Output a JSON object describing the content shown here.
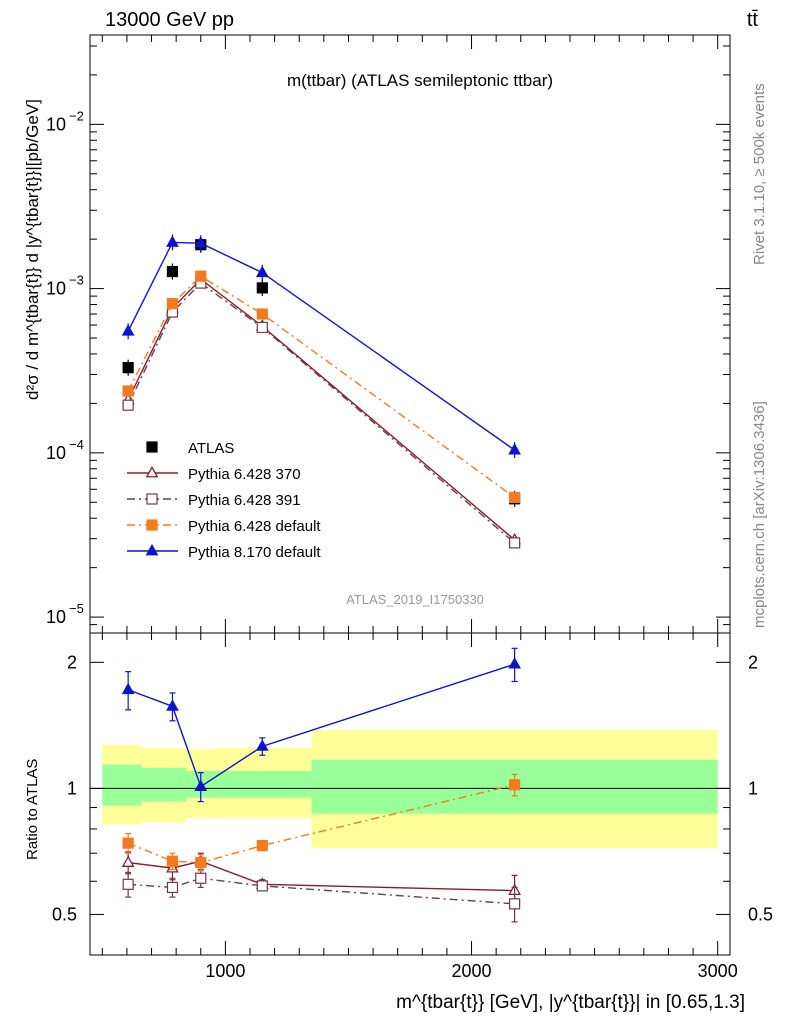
{
  "header": {
    "energy": "13000 GeV pp",
    "process": "tt̄"
  },
  "side": {
    "rivet": "Rivet 3.1.10, ≥ 500k events",
    "mcplots": "mcplots.cern.ch [arXiv:1306.3436]"
  },
  "chart_data": [
    {
      "type": "scatter",
      "title": "m(ttbar) (ATLAS semileptonic ttbar)",
      "analysis": "ATLAS_2019_I1750330",
      "ylabel": "d²σ / d m^{tbar{t}} d |y^{tbar{t}}|[pb/GeV]",
      "xlabel": "m^{tbar{t}} [GeV], |y^{tbar{t}}| in [0.65,1.3]",
      "yscale": "log",
      "xlim": [
        450,
        3050
      ],
      "ylim": [
        8e-06,
        0.035
      ],
      "y_tick_labels": [
        "10^-5",
        "10^-4",
        "10^-3",
        "10^-2"
      ],
      "legend": "top-left",
      "series": [
        {
          "name": "ATLAS",
          "color": "#000000",
          "marker": "square-filled",
          "x": [
            605,
            785,
            900,
            1150,
            2175
          ],
          "y": [
            0.00033,
            0.00127,
            0.00185,
            0.00101,
            5.25e-05
          ]
        },
        {
          "name": "Pythia 6.428 370",
          "color": "#8b1a2b",
          "marker": "triangle-open",
          "dash": "",
          "x": [
            605,
            785,
            900,
            1150,
            2175
          ],
          "y": [
            0.00021,
            0.00076,
            0.00114,
            0.00059,
            2.95e-05
          ]
        },
        {
          "name": "Pythia 6.428 391",
          "color": "#6e3b47",
          "marker": "square-open",
          "dash": "8,4,2,4",
          "x": [
            605,
            785,
            900,
            1150,
            2175
          ],
          "y": [
            0.000195,
            0.00072,
            0.00108,
            0.00058,
            2.83e-05
          ]
        },
        {
          "name": "Pythia 6.428 default",
          "color": "#f47a20",
          "marker": "square-filled",
          "dash": "8,4,2,4",
          "x": [
            605,
            785,
            900,
            1150,
            2175
          ],
          "y": [
            0.000238,
            0.00081,
            0.00119,
            0.0007,
            5.35e-05
          ]
        },
        {
          "name": "Pythia 8.170 default",
          "color": "#0a14d0",
          "marker": "triangle-filled",
          "dash": "",
          "x": [
            605,
            785,
            900,
            1150,
            2175
          ],
          "y": [
            0.00055,
            0.00191,
            0.00189,
            0.00125,
            0.000104
          ]
        }
      ]
    },
    {
      "type": "scatter",
      "ylabel": "Ratio to ATLAS",
      "yscale": "log",
      "ylim": [
        0.4,
        2.35
      ],
      "y_tick_labels": [
        "0.5",
        "1",
        "2"
      ],
      "y_ticks": [
        0.5,
        1,
        2
      ],
      "x_tick_labels": [
        "1000",
        "2000",
        "3000"
      ],
      "x_ticks": [
        1000,
        2000,
        3000
      ],
      "bands": [
        {
          "x0": 500,
          "x1": 660,
          "inner": [
            0.91,
            1.14
          ],
          "outer": [
            0.82,
            1.27
          ]
        },
        {
          "x0": 660,
          "x1": 840,
          "inner": [
            0.93,
            1.12
          ],
          "outer": [
            0.83,
            1.25
          ]
        },
        {
          "x0": 840,
          "x1": 950,
          "inner": [
            0.95,
            1.1
          ],
          "outer": [
            0.85,
            1.24
          ]
        },
        {
          "x0": 950,
          "x1": 1350,
          "inner": [
            0.95,
            1.1
          ],
          "outer": [
            0.85,
            1.25
          ]
        },
        {
          "x0": 1350,
          "x1": 3000,
          "inner": [
            0.87,
            1.17
          ],
          "outer": [
            0.72,
            1.38
          ]
        }
      ],
      "band_colors": {
        "inner": "#99ff99",
        "outer": "#ffff99"
      },
      "series": [
        {
          "name": "Pythia 6.428 370",
          "color": "#8b1a2b",
          "marker": "triangle-open",
          "dash": "",
          "x": [
            605,
            785,
            900,
            1150,
            2175
          ],
          "y": [
            0.665,
            0.645,
            0.67,
            0.59,
            0.57
          ],
          "err": [
            0.04,
            0.04,
            0.03,
            0.015,
            0.05
          ]
        },
        {
          "name": "Pythia 6.428 391",
          "color": "#6e3b47",
          "marker": "square-open",
          "dash": "8,4,2,4",
          "x": [
            605,
            785,
            900,
            1150,
            2175
          ],
          "y": [
            0.59,
            0.58,
            0.61,
            0.585,
            0.53
          ],
          "err": [
            0.04,
            0.03,
            0.03,
            0.015,
            0.05
          ]
        },
        {
          "name": "Pythia 6.428 default",
          "color": "#f47a20",
          "marker": "square-filled",
          "dash": "8,4,2,4",
          "x": [
            605,
            785,
            900,
            1150,
            2175
          ],
          "y": [
            0.74,
            0.67,
            0.665,
            0.73,
            1.02
          ],
          "err": [
            0.04,
            0.03,
            0.03,
            0.015,
            0.06
          ]
        },
        {
          "name": "Pythia 8.170 default",
          "color": "#0a14d0",
          "marker": "triangle-filled",
          "dash": "",
          "x": [
            605,
            785,
            900,
            1150,
            2175
          ],
          "y": [
            1.72,
            1.57,
            1.01,
            1.26,
            1.98
          ],
          "err": [
            0.18,
            0.12,
            0.08,
            0.06,
            0.18
          ]
        }
      ]
    }
  ]
}
